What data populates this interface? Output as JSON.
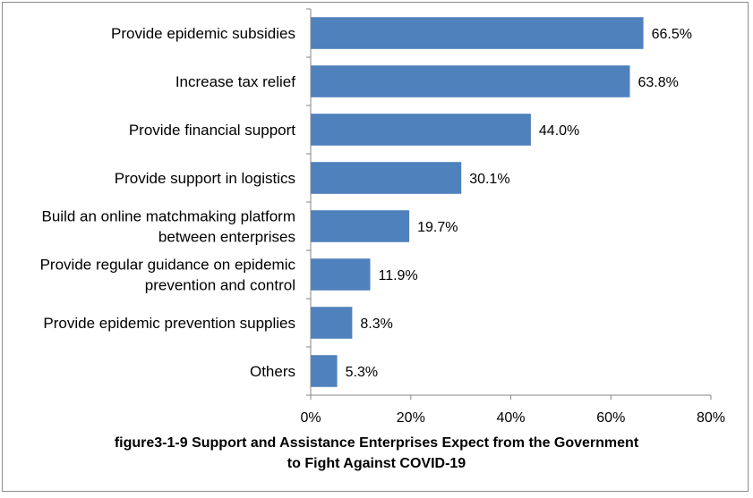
{
  "chart_data": {
    "type": "bar",
    "orientation": "horizontal",
    "categories": [
      [
        "Provide epidemic subsidies"
      ],
      [
        "Increase tax relief"
      ],
      [
        "Provide financial support"
      ],
      [
        "Provide support in logistics"
      ],
      [
        "Build an online matchmaking platform",
        "between enterprises"
      ],
      [
        "Provide regular guidance on epidemic",
        "prevention and control"
      ],
      [
        "Provide epidemic prevention supplies"
      ],
      [
        "Others"
      ]
    ],
    "values": [
      66.5,
      63.8,
      44.0,
      30.1,
      19.7,
      11.9,
      8.3,
      5.3
    ],
    "value_labels": [
      "66.5%",
      "63.8%",
      "44.0%",
      "30.1%",
      "19.7%",
      "11.9%",
      "8.3%",
      "5.3%"
    ],
    "xlim": [
      0,
      80
    ],
    "x_ticks": [
      0,
      20,
      40,
      60,
      80
    ],
    "x_tick_labels": [
      "0%",
      "20%",
      "40%",
      "60%",
      "80%"
    ],
    "xlabel": "",
    "ylabel": "",
    "grid": false,
    "legend": "none",
    "bar_color": "#4f81bd",
    "axis_color": "#868686"
  },
  "caption": {
    "line1": "figure3-1-9 Support and Assistance Enterprises Expect from the Government",
    "line2": "to Fight Against COVID-19"
  }
}
